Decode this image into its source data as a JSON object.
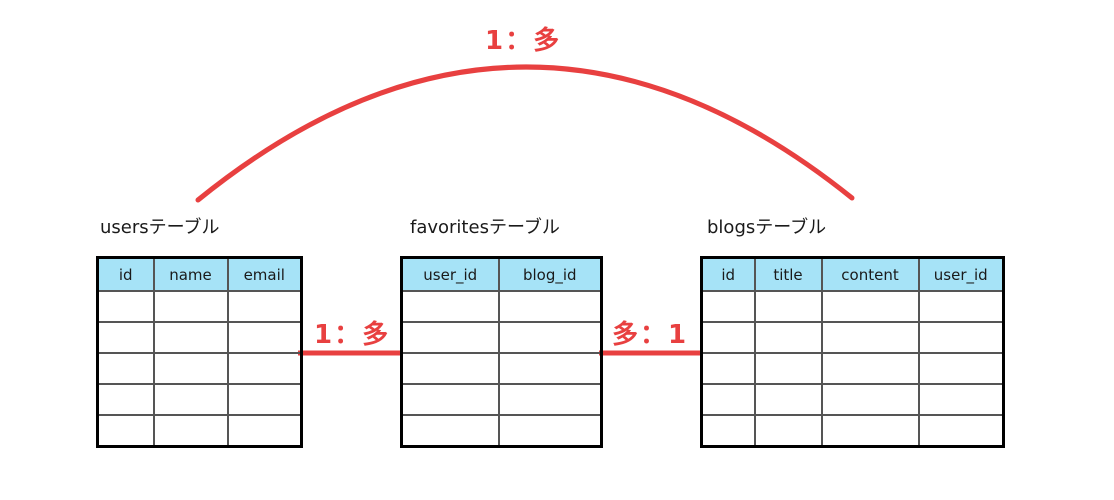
{
  "colors": {
    "relation": "#e84040",
    "header_bg": "#a6e3f7",
    "border": "#000000"
  },
  "relations": {
    "top_arc": "1：多",
    "users_favorites": "1：多",
    "favorites_blogs": "多：1"
  },
  "tables": {
    "users": {
      "title": "usersテーブル",
      "columns": [
        "id",
        "name",
        "email"
      ],
      "row_count": 5
    },
    "favorites": {
      "title": "favoritesテーブル",
      "columns": [
        "user_id",
        "blog_id"
      ],
      "row_count": 5
    },
    "blogs": {
      "title": "blogsテーブル",
      "columns": [
        "id",
        "title",
        "content",
        "user_id"
      ],
      "row_count": 5
    }
  }
}
